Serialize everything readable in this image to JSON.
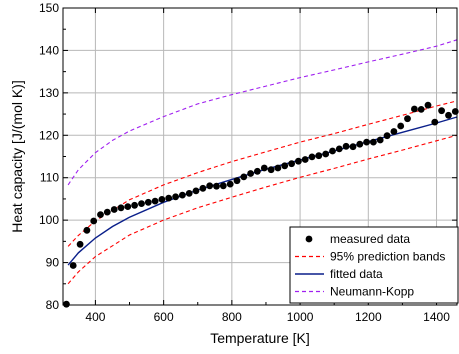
{
  "chart_data": {
    "type": "scatter",
    "title": "",
    "xlabel": "Temperature [K]",
    "ylabel": "Heat capacity [J/(mol K)]",
    "xlim": [
      305,
      1460
    ],
    "ylim": [
      80,
      150
    ],
    "x_ticks": [
      400,
      600,
      800,
      1000,
      1200,
      1400
    ],
    "y_ticks": [
      80,
      90,
      100,
      110,
      120,
      130,
      140,
      150
    ],
    "x_tick_labels": [
      "400",
      "600",
      "800",
      "1000",
      "1200",
      "1400"
    ],
    "y_tick_labels": [
      "80",
      "90",
      "100",
      "110",
      "120",
      "130",
      "140",
      "150"
    ],
    "grid": true,
    "legend_position": "bottom-right",
    "series": [
      {
        "name": "measured data",
        "kind": "scatter",
        "color": "#000000",
        "x": [
          315,
          335,
          355,
          375,
          395,
          415,
          435,
          455,
          475,
          495,
          515,
          535,
          555,
          575,
          595,
          615,
          635,
          655,
          675,
          695,
          715,
          735,
          755,
          775,
          795,
          815,
          835,
          855,
          875,
          895,
          915,
          935,
          955,
          975,
          995,
          1015,
          1035,
          1055,
          1075,
          1095,
          1115,
          1135,
          1155,
          1175,
          1195,
          1215,
          1235,
          1255,
          1275,
          1295,
          1315,
          1335,
          1355,
          1375,
          1395,
          1415,
          1435,
          1455
        ],
        "y": [
          80.2,
          89.3,
          94.3,
          97.6,
          99.8,
          101.3,
          101.9,
          102.5,
          102.9,
          103.2,
          103.5,
          103.9,
          104.2,
          104.5,
          104.9,
          105.2,
          105.5,
          105.9,
          106.3,
          106.9,
          107.5,
          108.1,
          108.0,
          108.1,
          108.5,
          109.3,
          110.2,
          111.0,
          111.5,
          112.3,
          111.9,
          112.3,
          112.8,
          113.3,
          113.9,
          114.3,
          114.9,
          115.2,
          115.6,
          116.3,
          116.8,
          117.4,
          117.3,
          117.9,
          118.4,
          118.4,
          118.9,
          119.9,
          120.9,
          122.2,
          123.9,
          126.2,
          126.1,
          127.1,
          123.1,
          125.8,
          124.7,
          125.6
        ]
      },
      {
        "name": "95% prediction bands",
        "kind": "line",
        "dash": "dashed",
        "color": "#ff0000",
        "x": [
          320,
          350,
          400,
          500,
          600,
          700,
          800,
          900,
          1000,
          1100,
          1200,
          1300,
          1400,
          1460
        ],
        "y": [
          93.8,
          96.4,
          99.8,
          104.8,
          108.3,
          111.2,
          113.8,
          116.1,
          118.4,
          120.4,
          122.6,
          124.7,
          126.9,
          128.1
        ]
      },
      {
        "name": "",
        "kind": "line",
        "dash": "dashed",
        "color": "#ff0000",
        "x": [
          320,
          350,
          400,
          500,
          600,
          700,
          800,
          900,
          1000,
          1100,
          1200,
          1300,
          1400,
          1460
        ],
        "y": [
          85.0,
          87.8,
          91.4,
          96.5,
          100.0,
          102.9,
          105.4,
          107.8,
          110.1,
          112.2,
          114.4,
          116.5,
          118.7,
          120.0
        ]
      },
      {
        "name": "fitted data",
        "kind": "line",
        "dash": "solid",
        "color": "#0a1f8a",
        "x": [
          320,
          350,
          400,
          450,
          500,
          600,
          700,
          800,
          900,
          1000,
          1100,
          1200,
          1300,
          1400,
          1460
        ],
        "y": [
          89.4,
          92.3,
          95.8,
          98.5,
          100.7,
          104.2,
          107.1,
          109.6,
          112.0,
          114.2,
          116.3,
          118.5,
          120.7,
          122.9,
          124.3
        ]
      },
      {
        "name": "Neumann-Kopp",
        "kind": "line",
        "dash": "dashed",
        "color": "#a020f0",
        "x": [
          320,
          350,
          400,
          450,
          500,
          600,
          700,
          800,
          900,
          1000,
          1100,
          1200,
          1300,
          1400,
          1460
        ],
        "y": [
          108.3,
          111.9,
          115.9,
          118.8,
          121.0,
          124.4,
          127.4,
          129.6,
          131.6,
          133.6,
          135.4,
          137.3,
          139.1,
          141.0,
          142.5
        ]
      }
    ]
  }
}
